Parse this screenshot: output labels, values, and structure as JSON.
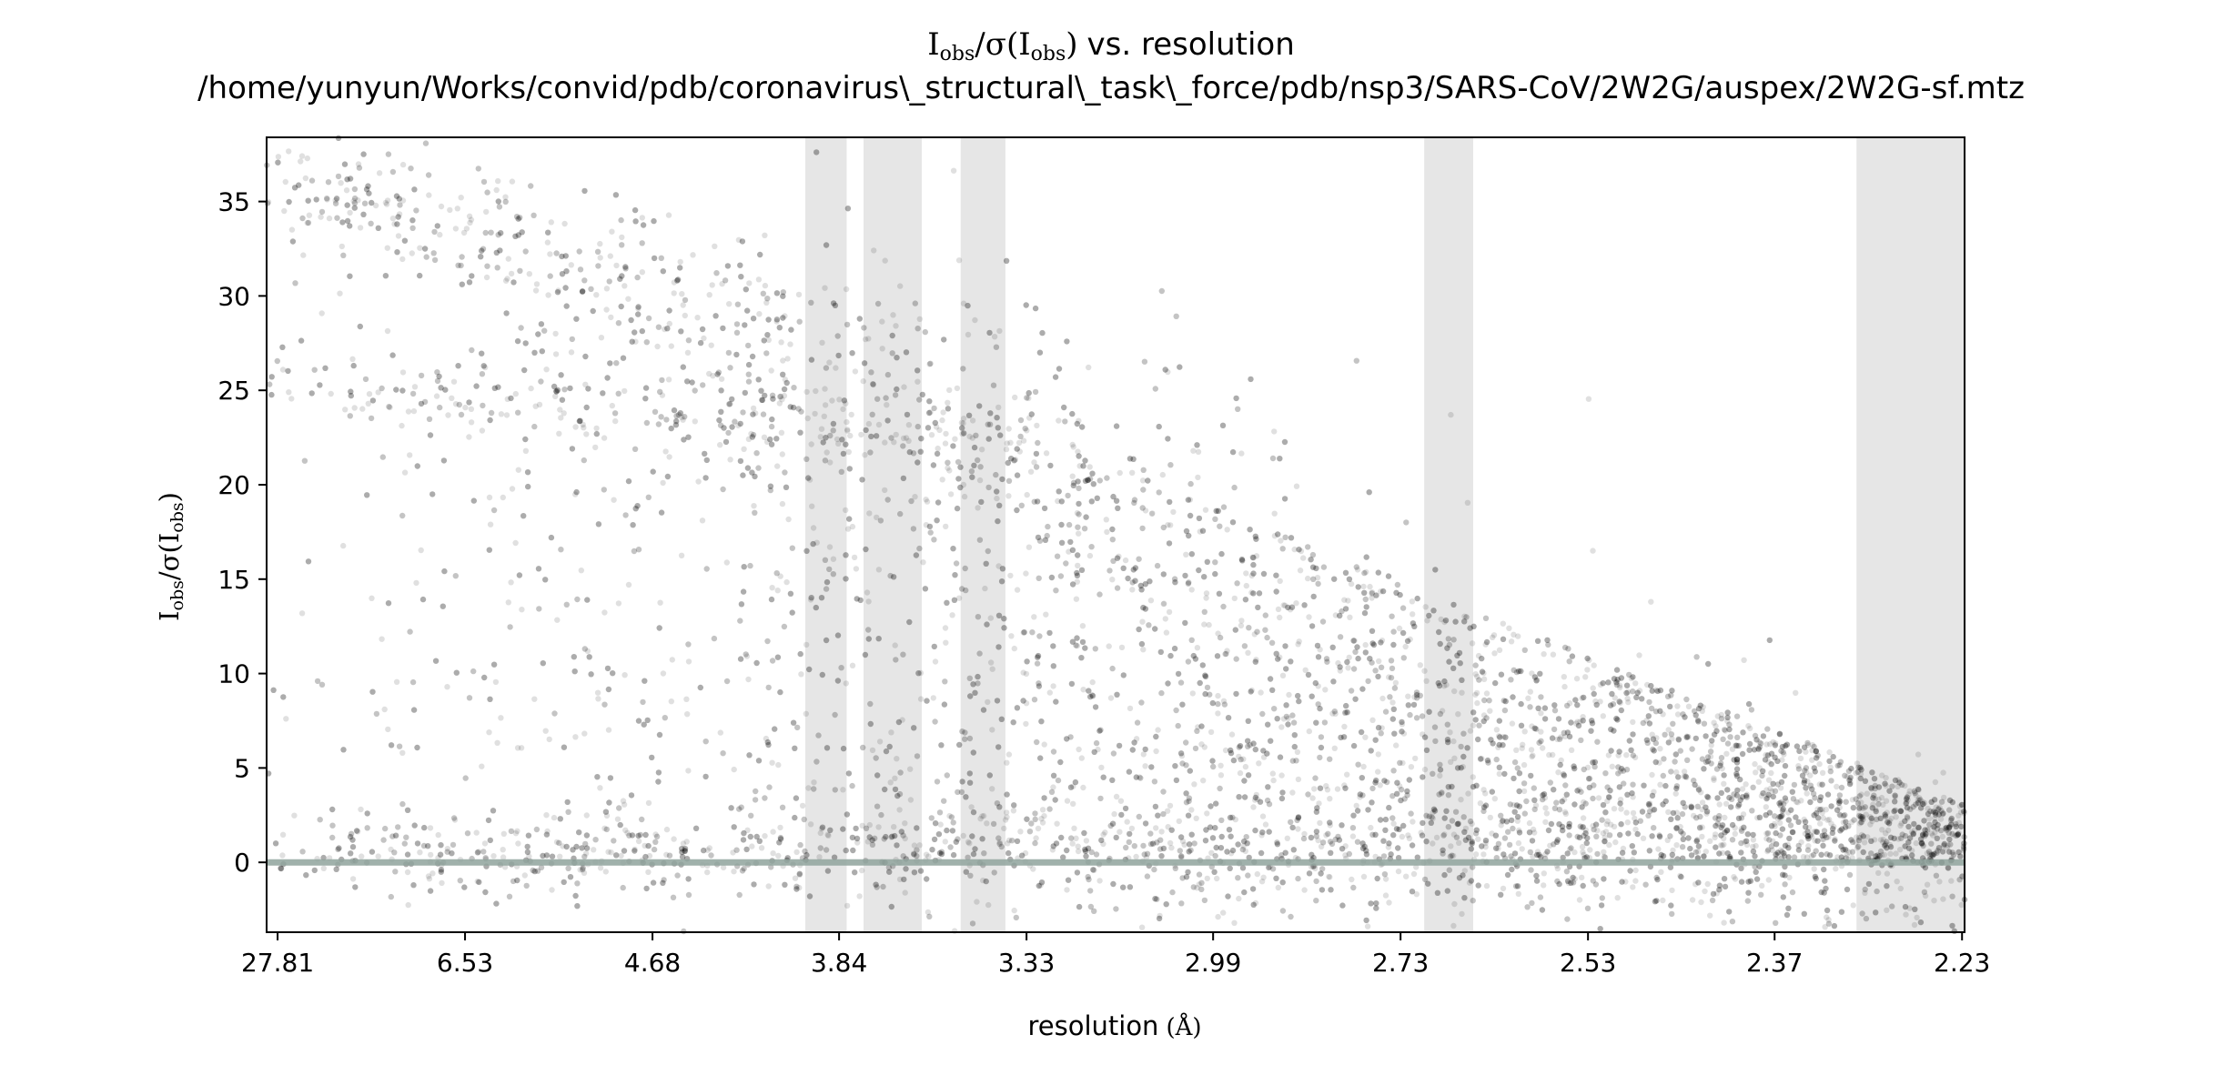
{
  "chart_data": {
    "type": "scatter",
    "title_main": "vs. resolution",
    "title_path": "/home/yunyun/Works/convid/pdb/coronavirus\\_structural\\_task\\_force/pdb/nsp3/SARS-CoV/2W2G/auspex/2W2G-sf.mtz",
    "symbols": {
      "I": "I",
      "obs": "obs",
      "slash": "/",
      "sigma_open": "σ(",
      "close": ")",
      "angstrom": "(Å)"
    },
    "xlabel": "resolution",
    "ylabel": "Iobs/σ(Iobs)",
    "x_ticks": [
      "27.81",
      "6.53",
      "4.68",
      "3.84",
      "3.33",
      "2.99",
      "2.73",
      "2.53",
      "2.37",
      "2.23"
    ],
    "x_tick_positions_1_over_d2": [
      0.0013,
      0.0235,
      0.0457,
      0.0678,
      0.09,
      0.1121,
      0.1343,
      0.1565,
      0.1786,
      0.2008
    ],
    "xlim_1_over_d2": [
      0,
      0.2011
    ],
    "y_ticks": [
      0,
      5,
      10,
      15,
      20,
      25,
      30,
      35
    ],
    "ylim": [
      -3.7,
      38.4
    ],
    "reference_line_y": 0,
    "excluded_resolution_bands_1_over_d2": [
      [
        0.0638,
        0.0687
      ],
      [
        0.0707,
        0.0776
      ],
      [
        0.0822,
        0.0875
      ],
      [
        0.1371,
        0.1429
      ],
      [
        0.1883,
        0.2011
      ]
    ],
    "series": [
      {
        "name": "",
        "color": "#000000",
        "alpha": 0.12,
        "point_density_profile": [
          {
            "x": 0.003,
            "clusters_y": [
              36.2,
              25.8
            ]
          },
          {
            "x": 0.02,
            "clusters_y": [
              35.8,
              25.6
            ]
          },
          {
            "x": 0.045,
            "clusters_y": [
              35.5,
              25.2
            ]
          },
          {
            "x": 0.07,
            "clusters_y": [
              33.0,
              22.0,
              5.0
            ]
          },
          {
            "x": 0.09,
            "clusters_y": [
              28.0,
              15.0,
              3.0
            ]
          },
          {
            "x": 0.112,
            "clusters_y": [
              18.0,
              6.0,
              1.0
            ]
          },
          {
            "x": 0.134,
            "clusters_y": [
              8.0,
              1.0
            ]
          },
          {
            "x": 0.157,
            "clusters_y": [
              3.0,
              0.5
            ]
          },
          {
            "x": 0.18,
            "clusters_y": [
              1.5,
              0.2
            ]
          },
          {
            "x": 0.2,
            "clusters_y": [
              0.8,
              0.0
            ]
          }
        ]
      }
    ]
  }
}
